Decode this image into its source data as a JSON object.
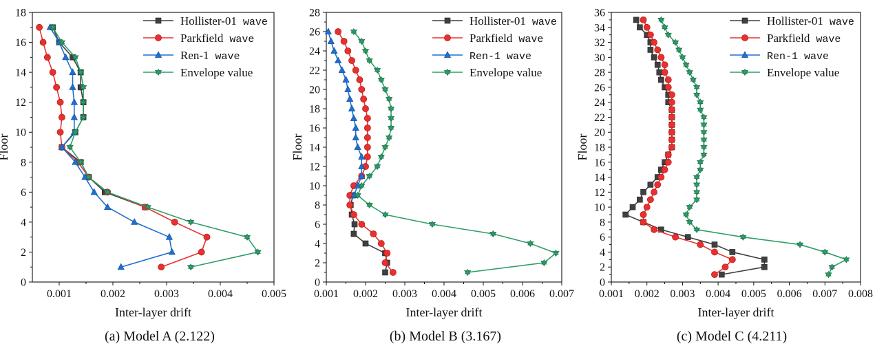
{
  "figure": {
    "captions": [
      "(a) Model A (2.122)",
      "(b) Model B (3.167)",
      "(c) Model C (4.211)"
    ]
  },
  "legend_labels": [
    "Hollister-01 wave",
    "Parkfield wave",
    "Ren-1 wave",
    "Envelope value"
  ],
  "series_styles": [
    {
      "color": "#404040",
      "marker": "square"
    },
    {
      "color": "#e8312f",
      "marker": "circle"
    },
    {
      "color": "#1f6fd1",
      "marker": "triangle-up"
    },
    {
      "color": "#2e9e68",
      "marker": "triangle-down-star"
    }
  ],
  "chart_data": [
    {
      "type": "line",
      "xlabel": "Inter-layer drift",
      "ylabel": "Floor",
      "xlim": [
        0.0005,
        0.005
      ],
      "ylim": [
        0,
        18
      ],
      "xticks": [
        "0.001",
        "0.002",
        "0.003",
        "0.004",
        "0.005"
      ],
      "yticks": [
        "0",
        "2",
        "4",
        "6",
        "8",
        "10",
        "12",
        "14",
        "16",
        "18"
      ],
      "legend_position": "top-right",
      "series": [
        {
          "name": "Hollister-01 wave",
          "y": [
            5,
            6,
            7,
            8,
            9,
            10,
            11,
            12,
            13,
            14,
            15,
            16,
            17
          ],
          "x": [
            0.0026,
            0.00185,
            0.00155,
            0.0014,
            0.00105,
            0.0013,
            0.00145,
            0.00145,
            0.0014,
            0.0014,
            0.00125,
            0.001,
            0.00088
          ]
        },
        {
          "name": "Parkfield wave",
          "y": [
            1,
            2,
            3,
            4,
            5,
            6,
            7,
            8,
            9,
            10,
            11,
            12,
            13,
            14,
            15,
            16,
            17
          ],
          "x": [
            0.0029,
            0.00365,
            0.00375,
            0.00315,
            0.0026,
            0.0019,
            0.00155,
            0.00135,
            0.00105,
            0.00102,
            0.00105,
            0.00102,
            0.00095,
            0.00088,
            0.00078,
            0.0007,
            0.00063
          ]
        },
        {
          "name": "Ren-1 wave",
          "y": [
            1,
            2,
            3,
            4,
            5,
            6,
            7,
            8,
            9,
            10,
            11,
            12,
            13,
            14,
            15,
            16,
            17
          ],
          "x": [
            0.00215,
            0.0031,
            0.00305,
            0.0024,
            0.0019,
            0.00165,
            0.00148,
            0.0013,
            0.00105,
            0.00128,
            0.00128,
            0.00128,
            0.00125,
            0.00125,
            0.00112,
            0.001,
            0.00083
          ]
        },
        {
          "name": "Envelope value",
          "y": [
            1,
            2,
            3,
            4,
            5,
            6,
            7,
            8,
            9,
            10,
            11,
            12,
            13,
            14,
            15,
            16,
            17
          ],
          "x": [
            0.00345,
            0.0047,
            0.0045,
            0.00345,
            0.00265,
            0.0019,
            0.00155,
            0.0014,
            0.0012,
            0.0013,
            0.00145,
            0.00145,
            0.00145,
            0.0014,
            0.0013,
            0.00105,
            0.00088
          ]
        }
      ]
    },
    {
      "type": "line",
      "xlabel": "Inter-layer drift",
      "ylabel": "Floor",
      "xlim": [
        0.001,
        0.007
      ],
      "ylim": [
        0,
        28
      ],
      "xticks": [
        "0.001",
        "0.002",
        "0.003",
        "0.004",
        "0.005",
        "0.006",
        "0.007"
      ],
      "yticks": [
        "0",
        "2",
        "4",
        "6",
        "8",
        "10",
        "12",
        "14",
        "16",
        "18",
        "20",
        "22",
        "24",
        "26",
        "28"
      ],
      "legend_position": "top-right",
      "series": [
        {
          "name": "Hollister-01 wave",
          "y": [
            1,
            2,
            3,
            4,
            5,
            6,
            7,
            8,
            9
          ],
          "x": [
            0.0025,
            0.00255,
            0.0025,
            0.002,
            0.0017,
            0.00172,
            0.00165,
            0.00162,
            0.00168
          ]
        },
        {
          "name": "Parkfield wave",
          "y": [
            1,
            2,
            3,
            4,
            5,
            6,
            7,
            8,
            9,
            10,
            11,
            12,
            13,
            14,
            15,
            16,
            17,
            18,
            19,
            20,
            21,
            22,
            23,
            24,
            25,
            26
          ],
          "x": [
            0.0027,
            0.0025,
            0.00255,
            0.0024,
            0.0022,
            0.0019,
            0.0017,
            0.0016,
            0.0016,
            0.0017,
            0.0019,
            0.002,
            0.00205,
            0.00205,
            0.00205,
            0.00205,
            0.00205,
            0.002,
            0.00195,
            0.0019,
            0.00185,
            0.00175,
            0.00165,
            0.00155,
            0.00145,
            0.0013
          ]
        },
        {
          "name": "Ren-1 wave",
          "y": [
            9,
            10,
            11,
            12,
            13,
            14,
            15,
            16,
            17,
            18,
            19,
            20,
            21,
            22,
            23,
            24,
            25,
            26
          ],
          "x": [
            0.0017,
            0.0018,
            0.0019,
            0.0019,
            0.0019,
            0.0018,
            0.00175,
            0.00175,
            0.0017,
            0.00165,
            0.0016,
            0.00155,
            0.0015,
            0.0014,
            0.0013,
            0.0012,
            0.00112,
            0.00105
          ]
        },
        {
          "name": "Envelope value",
          "y": [
            1,
            2,
            3,
            4,
            5,
            6,
            7,
            8,
            9,
            10,
            11,
            12,
            13,
            14,
            15,
            16,
            17,
            18,
            19,
            20,
            21,
            22,
            23,
            24,
            25,
            26
          ],
          "x": [
            0.0046,
            0.00655,
            0.00685,
            0.0062,
            0.00525,
            0.0037,
            0.0025,
            0.0021,
            0.0018,
            0.0019,
            0.0021,
            0.0023,
            0.0024,
            0.0025,
            0.0026,
            0.00265,
            0.00265,
            0.00265,
            0.0026,
            0.0025,
            0.0024,
            0.0023,
            0.0021,
            0.002,
            0.0019,
            0.0017
          ]
        }
      ]
    },
    {
      "type": "line",
      "xlabel": "Inter-layer drift",
      "ylabel": "Floor",
      "xlim": [
        0.001,
        0.008
      ],
      "ylim": [
        0,
        36
      ],
      "xticks": [
        "0.001",
        "0.002",
        "0.003",
        "0.004",
        "0.005",
        "0.006",
        "0.007",
        "0.008"
      ],
      "yticks": [
        "0",
        "2",
        "4",
        "6",
        "8",
        "10",
        "12",
        "14",
        "16",
        "18",
        "20",
        "22",
        "24",
        "26",
        "28",
        "30",
        "32",
        "34",
        "36"
      ],
      "legend_position": "top-right",
      "series": [
        {
          "name": "Hollister-01 wave",
          "y": [
            1,
            2,
            3,
            4,
            5,
            6,
            7,
            8,
            9,
            10,
            11,
            12,
            13,
            14,
            15,
            16,
            17,
            18,
            19,
            20,
            21,
            22,
            23,
            24,
            25,
            26,
            27,
            28,
            29,
            30,
            31,
            32,
            33,
            34,
            35
          ],
          "x": [
            0.0041,
            0.0053,
            0.0053,
            0.0044,
            0.0039,
            0.00315,
            0.0024,
            0.0019,
            0.0014,
            0.0016,
            0.0018,
            0.0019,
            0.0021,
            0.0023,
            0.0024,
            0.0025,
            0.0026,
            0.0027,
            0.0027,
            0.0027,
            0.0027,
            0.0027,
            0.0027,
            0.0026,
            0.0026,
            0.0025,
            0.0024,
            0.00235,
            0.0023,
            0.0022,
            0.0021,
            0.0021,
            0.002,
            0.0018,
            0.0017
          ]
        },
        {
          "name": "Parkfield wave",
          "y": [
            1,
            2,
            3,
            4,
            5,
            6,
            7,
            8,
            9,
            10,
            11,
            12,
            13,
            14,
            15,
            16,
            17,
            18,
            19,
            20,
            21,
            22,
            23,
            24,
            25,
            26,
            27,
            28,
            29,
            30,
            31,
            32,
            33,
            34,
            35
          ],
          "x": [
            0.0039,
            0.0042,
            0.0044,
            0.0039,
            0.0035,
            0.0028,
            0.0022,
            0.0019,
            0.0019,
            0.002,
            0.0021,
            0.0022,
            0.0023,
            0.0024,
            0.0025,
            0.0026,
            0.0026,
            0.0027,
            0.0027,
            0.0027,
            0.0027,
            0.0027,
            0.0027,
            0.0027,
            0.0027,
            0.0026,
            0.0026,
            0.0025,
            0.0025,
            0.0024,
            0.0023,
            0.0022,
            0.0021,
            0.002,
            0.0019
          ]
        },
        {
          "name": "Envelope value",
          "y": [
            1,
            2,
            3,
            4,
            5,
            6,
            7,
            8,
            9,
            10,
            11,
            12,
            13,
            14,
            15,
            16,
            17,
            18,
            19,
            20,
            21,
            22,
            23,
            24,
            25,
            26,
            27,
            28,
            29,
            30,
            31,
            32,
            33,
            34,
            35
          ],
          "x": [
            0.0071,
            0.0072,
            0.0076,
            0.007,
            0.0063,
            0.0047,
            0.0034,
            0.0032,
            0.0031,
            0.0032,
            0.0034,
            0.0034,
            0.0034,
            0.0034,
            0.0035,
            0.0035,
            0.0036,
            0.0036,
            0.0036,
            0.0036,
            0.0036,
            0.0036,
            0.0035,
            0.0035,
            0.0034,
            0.0034,
            0.0033,
            0.0032,
            0.0031,
            0.003,
            0.0029,
            0.0028,
            0.0026,
            0.0025,
            0.0024
          ]
        }
      ]
    }
  ]
}
